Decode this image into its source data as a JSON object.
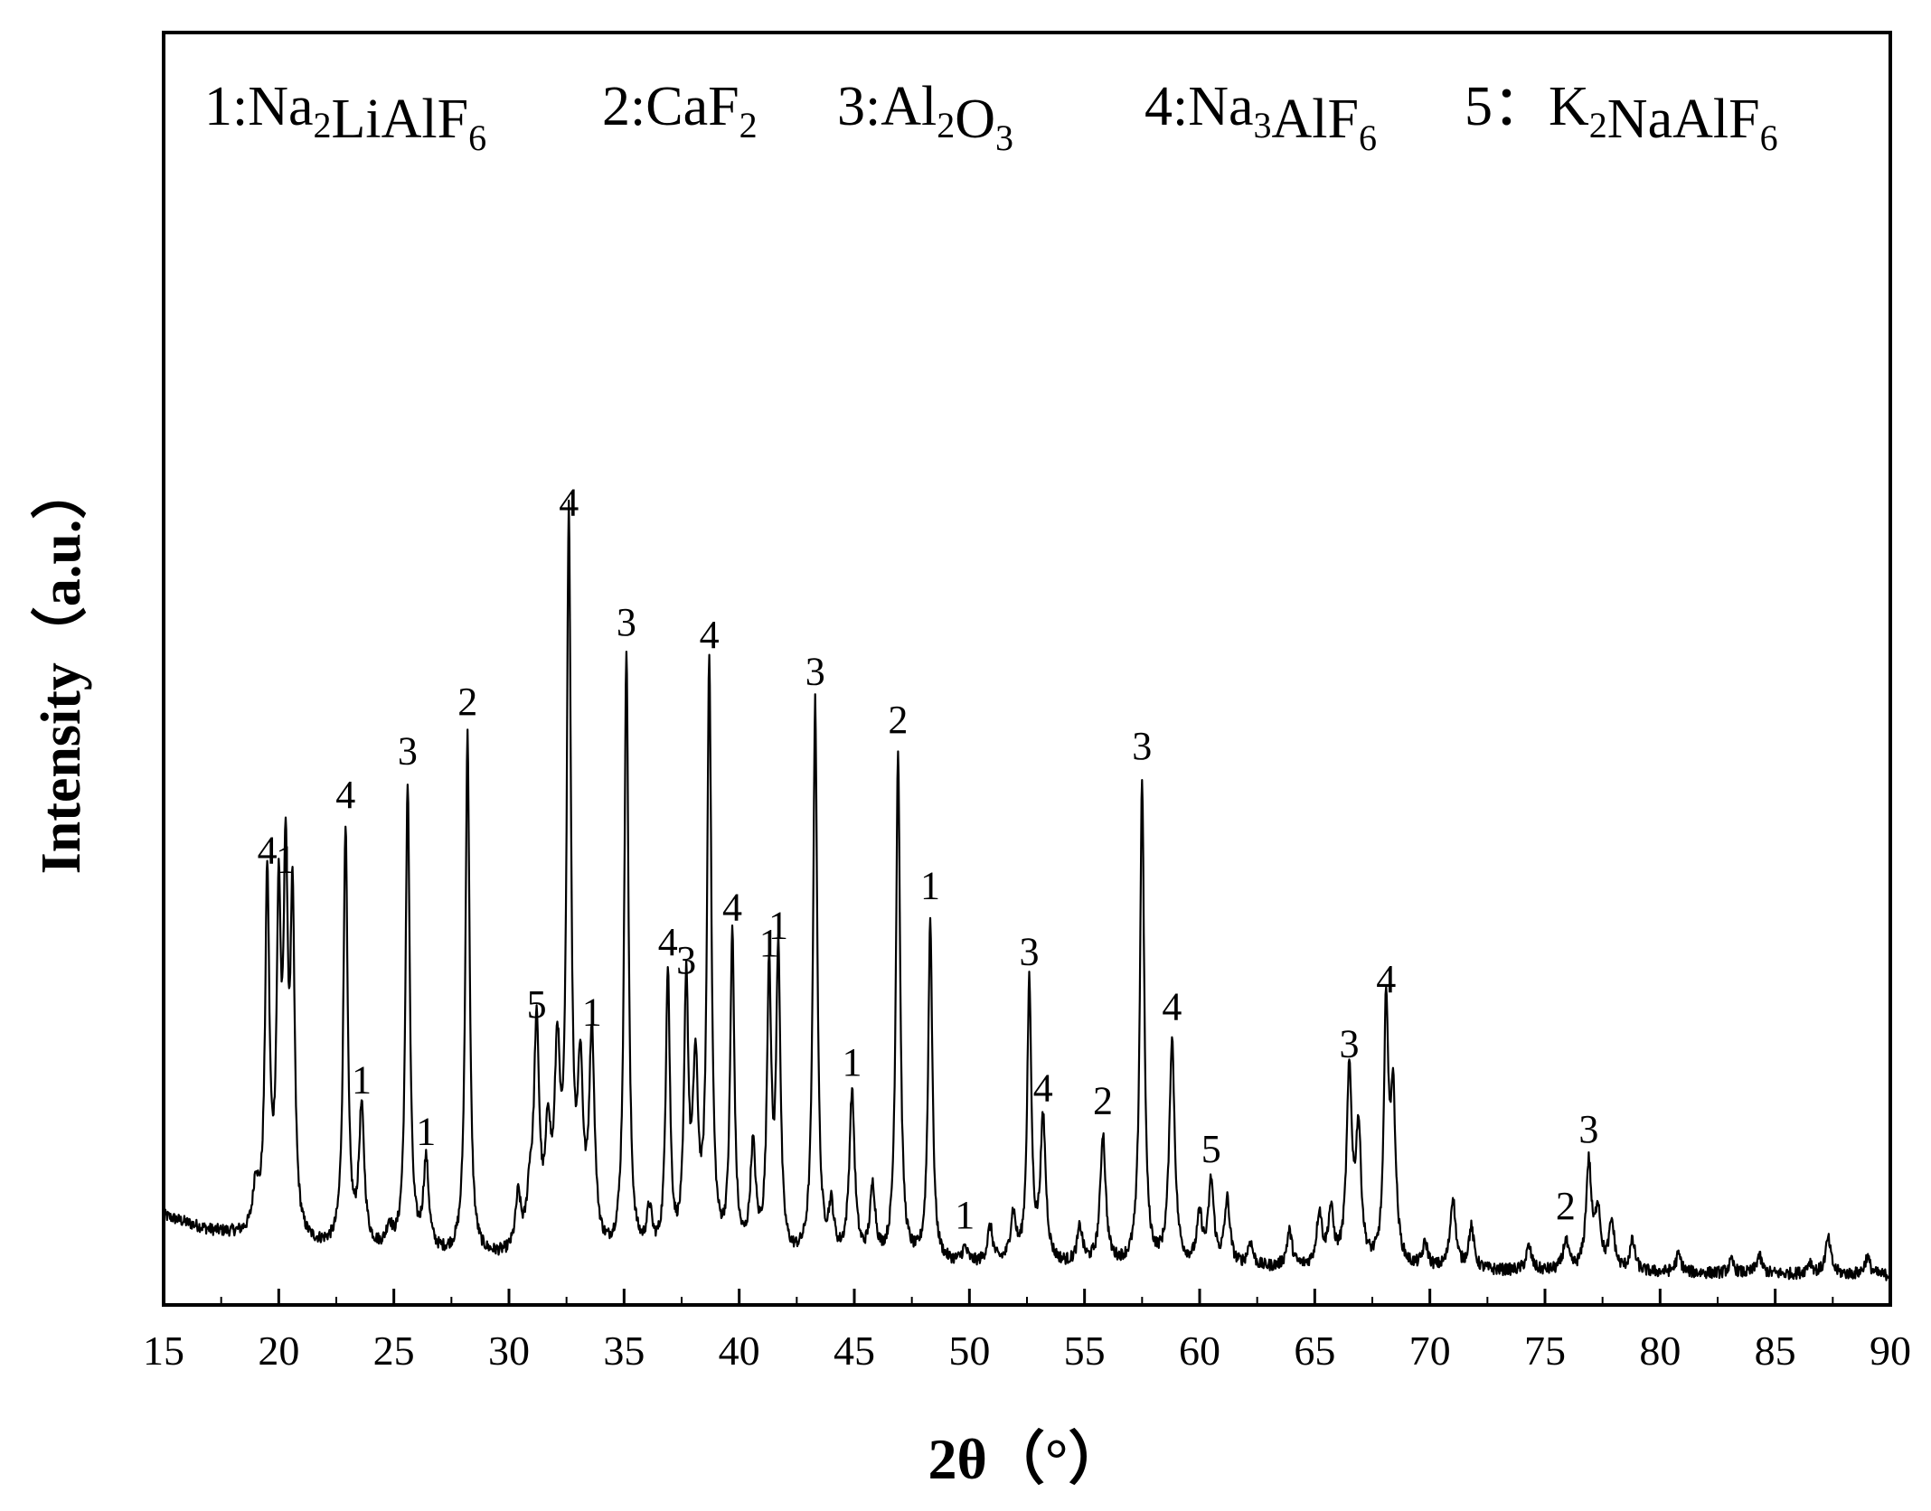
{
  "chart_data": {
    "type": "line",
    "xlabel": "2θ（°）",
    "ylabel": "Intensity（a.u.）",
    "xlim": [
      15,
      90
    ],
    "ylim": [
      0,
      1000
    ],
    "xticks": [
      "15",
      "20",
      "25",
      "30",
      "35",
      "40",
      "45",
      "50",
      "55",
      "60",
      "65",
      "70",
      "75",
      "80",
      "85",
      "90"
    ],
    "legend": [
      {
        "id": "1",
        "sep": ":",
        "formula": [
          [
            "Na",
            "2"
          ],
          [
            "LiAlF",
            "6"
          ]
        ]
      },
      {
        "id": "2",
        "sep": ":",
        "formula": [
          [
            "CaF",
            "2"
          ]
        ]
      },
      {
        "id": "3",
        "sep": ":",
        "formula": [
          [
            "Al",
            "2"
          ],
          [
            "O",
            "3"
          ]
        ]
      },
      {
        "id": "4",
        "sep": ":",
        "formula": [
          [
            "Na",
            "3"
          ],
          [
            "AlF",
            "6"
          ]
        ]
      },
      {
        "id": "5",
        "sep": "：",
        "formula": [
          [
            "K",
            "2"
          ],
          [
            "NaAlF",
            "6"
          ]
        ]
      }
    ],
    "baseline": [
      [
        15,
        75
      ],
      [
        17,
        62
      ],
      [
        19,
        55
      ],
      [
        21,
        48
      ],
      [
        23,
        45
      ],
      [
        25,
        43
      ],
      [
        27,
        40
      ],
      [
        29,
        38
      ],
      [
        31,
        38
      ],
      [
        35,
        36
      ],
      [
        40,
        35
      ],
      [
        45,
        34
      ],
      [
        50,
        33
      ],
      [
        55,
        32
      ],
      [
        60,
        31
      ],
      [
        65,
        30
      ],
      [
        70,
        29
      ],
      [
        75,
        28
      ],
      [
        80,
        27
      ],
      [
        85,
        26
      ],
      [
        90,
        25
      ]
    ],
    "peaks": [
      {
        "x": 19.0,
        "y": 40,
        "label": ""
      },
      {
        "x": 19.5,
        "y": 300,
        "label": "4"
      },
      {
        "x": 20.0,
        "y": 265,
        "label": ""
      },
      {
        "x": 20.3,
        "y": 295,
        "label": "1"
      },
      {
        "x": 20.6,
        "y": 270,
        "label": ""
      },
      {
        "x": 22.9,
        "y": 355,
        "label": "4"
      },
      {
        "x": 23.6,
        "y": 115,
        "label": "1"
      },
      {
        "x": 24.8,
        "y": 18,
        "label": ""
      },
      {
        "x": 25.6,
        "y": 395,
        "label": "3"
      },
      {
        "x": 26.4,
        "y": 75,
        "label": "1"
      },
      {
        "x": 28.2,
        "y": 440,
        "label": "2"
      },
      {
        "x": 30.4,
        "y": 45,
        "label": ""
      },
      {
        "x": 30.9,
        "y": 40,
        "label": ""
      },
      {
        "x": 31.2,
        "y": 185,
        "label": "5"
      },
      {
        "x": 31.7,
        "y": 90,
        "label": ""
      },
      {
        "x": 32.1,
        "y": 155,
        "label": ""
      },
      {
        "x": 32.6,
        "y": 610,
        "label": "4"
      },
      {
        "x": 33.1,
        "y": 140,
        "label": ""
      },
      {
        "x": 33.6,
        "y": 180,
        "label": "1"
      },
      {
        "x": 35.1,
        "y": 510,
        "label": "3"
      },
      {
        "x": 36.1,
        "y": 35,
        "label": ""
      },
      {
        "x": 36.9,
        "y": 240,
        "label": "4"
      },
      {
        "x": 37.7,
        "y": 225,
        "label": "3"
      },
      {
        "x": 38.1,
        "y": 150,
        "label": ""
      },
      {
        "x": 38.7,
        "y": 500,
        "label": "4"
      },
      {
        "x": 39.7,
        "y": 270,
        "label": "4"
      },
      {
        "x": 40.6,
        "y": 90,
        "label": ""
      },
      {
        "x": 41.3,
        "y": 240,
        "label": "1"
      },
      {
        "x": 41.7,
        "y": 255,
        "label": "1"
      },
      {
        "x": 43.3,
        "y": 470,
        "label": "3"
      },
      {
        "x": 44.0,
        "y": 40,
        "label": ""
      },
      {
        "x": 44.9,
        "y": 140,
        "label": "1"
      },
      {
        "x": 45.8,
        "y": 60,
        "label": ""
      },
      {
        "x": 46.9,
        "y": 430,
        "label": "2"
      },
      {
        "x": 48.3,
        "y": 290,
        "label": "1"
      },
      {
        "x": 49.8,
        "y": 12,
        "label": "1"
      },
      {
        "x": 50.9,
        "y": 30,
        "label": ""
      },
      {
        "x": 51.9,
        "y": 40,
        "label": ""
      },
      {
        "x": 52.6,
        "y": 235,
        "label": "3"
      },
      {
        "x": 53.2,
        "y": 120,
        "label": "4"
      },
      {
        "x": 54.8,
        "y": 30,
        "label": ""
      },
      {
        "x": 55.8,
        "y": 110,
        "label": "2"
      },
      {
        "x": 57.5,
        "y": 410,
        "label": "3"
      },
      {
        "x": 58.8,
        "y": 190,
        "label": "4"
      },
      {
        "x": 60.0,
        "y": 40,
        "label": ""
      },
      {
        "x": 60.5,
        "y": 70,
        "label": "5"
      },
      {
        "x": 61.2,
        "y": 55,
        "label": ""
      },
      {
        "x": 62.2,
        "y": 20,
        "label": ""
      },
      {
        "x": 63.9,
        "y": 30,
        "label": ""
      },
      {
        "x": 65.2,
        "y": 45,
        "label": ""
      },
      {
        "x": 65.7,
        "y": 45,
        "label": ""
      },
      {
        "x": 66.5,
        "y": 160,
        "label": "3"
      },
      {
        "x": 66.9,
        "y": 110,
        "label": ""
      },
      {
        "x": 68.1,
        "y": 215,
        "label": "4"
      },
      {
        "x": 68.4,
        "y": 140,
        "label": ""
      },
      {
        "x": 69.8,
        "y": 20,
        "label": ""
      },
      {
        "x": 71.0,
        "y": 60,
        "label": ""
      },
      {
        "x": 71.8,
        "y": 35,
        "label": ""
      },
      {
        "x": 74.3,
        "y": 20,
        "label": ""
      },
      {
        "x": 75.9,
        "y": 25,
        "label": "2"
      },
      {
        "x": 76.9,
        "y": 90,
        "label": "3"
      },
      {
        "x": 77.3,
        "y": 50,
        "label": ""
      },
      {
        "x": 77.9,
        "y": 40,
        "label": ""
      },
      {
        "x": 78.8,
        "y": 25,
        "label": ""
      },
      {
        "x": 80.8,
        "y": 15,
        "label": ""
      },
      {
        "x": 83.1,
        "y": 10,
        "label": ""
      },
      {
        "x": 84.3,
        "y": 15,
        "label": ""
      },
      {
        "x": 86.5,
        "y": 10,
        "label": ""
      },
      {
        "x": 87.3,
        "y": 30,
        "label": ""
      },
      {
        "x": 89.0,
        "y": 15,
        "label": ""
      }
    ],
    "grid": false,
    "legend_placement": "top"
  }
}
